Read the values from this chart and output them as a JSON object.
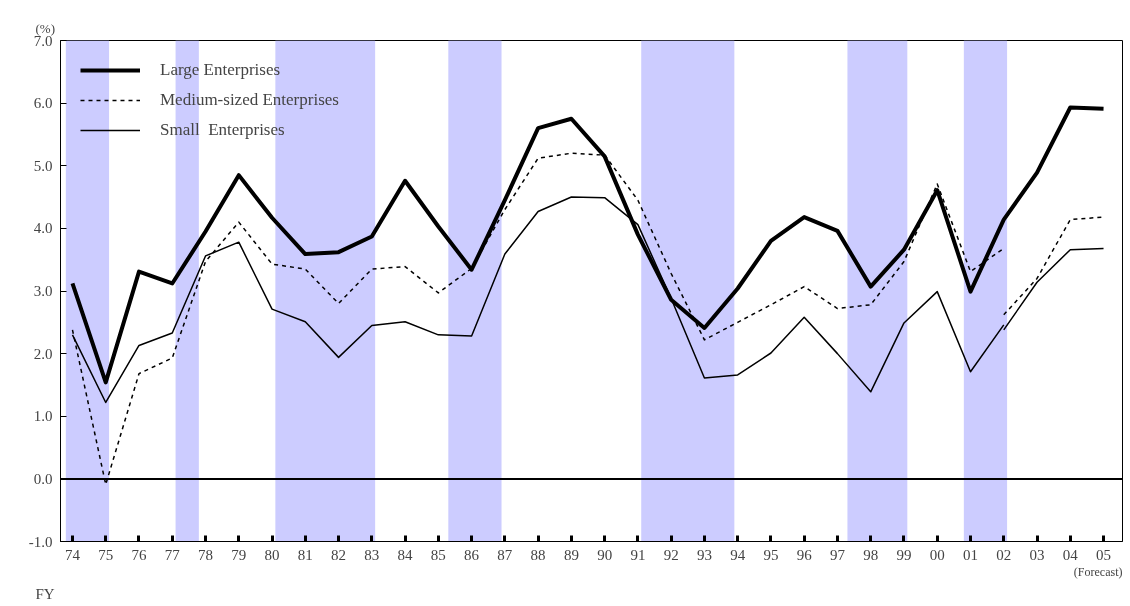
{
  "chart_data": {
    "type": "line",
    "ylabel": "(%)",
    "xlabel": "FY",
    "x": [
      1974,
      1975,
      1976,
      1977,
      1978,
      1979,
      1980,
      1981,
      1982,
      1983,
      1984,
      1985,
      1986,
      1987,
      1988,
      1989,
      1990,
      1991,
      1992,
      1993,
      1994,
      1995,
      1996,
      1997,
      1998,
      1999,
      2000,
      2001,
      2002,
      2003,
      2004,
      2005
    ],
    "series": [
      {
        "name": "Large Enterprises",
        "color": "#000000",
        "line_style": "solid",
        "values": [
          3.12,
          1.54,
          3.31,
          3.12,
          3.95,
          4.85,
          4.17,
          3.59,
          3.62,
          3.87,
          4.76,
          4.03,
          3.34,
          4.45,
          5.6,
          5.75,
          5.15,
          3.9,
          2.86,
          2.41,
          3.04,
          3.8,
          4.18,
          3.96,
          3.07,
          3.66,
          4.61,
          2.99,
          4.14,
          4.89,
          5.93,
          5.91
        ]
      },
      {
        "name": "Medium-sized Enterprises",
        "color": "#000000",
        "line_style": "dashed",
        "values": [
          2.38,
          -0.09,
          1.68,
          1.93,
          3.47,
          4.1,
          3.43,
          3.35,
          2.8,
          3.35,
          3.39,
          2.97,
          3.36,
          4.3,
          5.12,
          5.2,
          5.17,
          4.45,
          3.28,
          2.22,
          2.5,
          2.78,
          3.07,
          2.72,
          2.78,
          3.47,
          4.71,
          3.31,
          3.68,
          null,
          null,
          null
        ]
      },
      {
        "name": "Small  Enterprises",
        "color": "#000000",
        "line_style": "solid",
        "values": [
          2.3,
          1.22,
          2.13,
          2.33,
          3.56,
          3.78,
          2.71,
          2.51,
          1.94,
          2.45,
          2.51,
          2.3,
          2.28,
          3.59,
          4.27,
          4.5,
          4.49,
          4.06,
          2.88,
          1.61,
          1.66,
          2.01,
          2.58,
          2.0,
          1.39,
          2.49,
          2.99,
          1.71,
          2.46,
          null,
          null,
          null
        ]
      },
      {
        "color": "#000000",
        "line_style": "dashed",
        "values": [
          null,
          null,
          null,
          null,
          null,
          null,
          null,
          null,
          null,
          null,
          null,
          null,
          null,
          null,
          null,
          null,
          null,
          null,
          null,
          null,
          null,
          null,
          null,
          null,
          null,
          null,
          null,
          null,
          2.62,
          3.2,
          4.14,
          4.18
        ]
      },
      {
        "color": "#000000",
        "line_style": "solid",
        "values": [
          null,
          null,
          null,
          null,
          null,
          null,
          null,
          null,
          null,
          null,
          null,
          null,
          null,
          null,
          null,
          null,
          null,
          null,
          null,
          null,
          null,
          null,
          null,
          null,
          null,
          null,
          null,
          null,
          2.38,
          3.14,
          3.66,
          3.68
        ]
      }
    ],
    "xlim": [
      1973.64,
      2005.57
    ],
    "xticks": [
      {
        "value": 1974,
        "label": "74"
      },
      {
        "value": 1975,
        "label": "75"
      },
      {
        "value": 1976,
        "label": "76"
      },
      {
        "value": 1977,
        "label": "77"
      },
      {
        "value": 1978,
        "label": "78"
      },
      {
        "value": 1979,
        "label": "79"
      },
      {
        "value": 1980,
        "label": "80"
      },
      {
        "value": 1981,
        "label": "81"
      },
      {
        "value": 1982,
        "label": "82"
      },
      {
        "value": 1983,
        "label": "83"
      },
      {
        "value": 1984,
        "label": "84"
      },
      {
        "value": 1985,
        "label": "85"
      },
      {
        "value": 1986,
        "label": "86"
      },
      {
        "value": 1987,
        "label": "87"
      },
      {
        "value": 1988,
        "label": "88"
      },
      {
        "value": 1989,
        "label": "89"
      },
      {
        "value": 1990,
        "label": "90"
      },
      {
        "value": 1991,
        "label": "91"
      },
      {
        "value": 1992,
        "label": "92"
      },
      {
        "value": 1993,
        "label": "93"
      },
      {
        "value": 1994,
        "label": "94"
      },
      {
        "value": 1995,
        "label": "95"
      },
      {
        "value": 1996,
        "label": "96"
      },
      {
        "value": 1997,
        "label": "97"
      },
      {
        "value": 1998,
        "label": "98"
      },
      {
        "value": 1999,
        "label": "99"
      },
      {
        "value": 2000,
        "label": "00"
      },
      {
        "value": 2001,
        "label": "01"
      },
      {
        "value": 2002,
        "label": "02"
      },
      {
        "value": 2003,
        "label": "03"
      },
      {
        "value": 2004,
        "label": "04"
      },
      {
        "value": 2005,
        "label": "05"
      }
    ],
    "ylim": [
      -1.0,
      7.0
    ],
    "yticks": [
      {
        "value": -1,
        "label": "-1.0"
      },
      {
        "value": 0,
        "label": "0.0"
      },
      {
        "value": 1,
        "label": "1.0"
      },
      {
        "value": 2,
        "label": "2.0"
      },
      {
        "value": 3,
        "label": "3.0"
      },
      {
        "value": 4,
        "label": "4.0"
      },
      {
        "value": 5,
        "label": "5.0"
      },
      {
        "value": 6,
        "label": "6.0"
      },
      {
        "value": 7,
        "label": "7.0"
      }
    ],
    "ref_lines": [
      {
        "axis": "y",
        "value": 0,
        "color": "#000000"
      }
    ],
    "bands": [
      {
        "axis": "x",
        "from": 1973.8,
        "to": 1975.1,
        "color": "#ccccff"
      },
      {
        "axis": "x",
        "from": 1977.1,
        "to": 1977.8,
        "color": "#ccccff"
      },
      {
        "axis": "x",
        "from": 1980.1,
        "to": 1983.1,
        "color": "#ccccff"
      },
      {
        "axis": "x",
        "from": 1985.3,
        "to": 1986.9,
        "color": "#ccccff"
      },
      {
        "axis": "x",
        "from": 1991.1,
        "to": 1993.9,
        "color": "#ccccff"
      },
      {
        "axis": "x",
        "from": 1997.3,
        "to": 1999.1,
        "color": "#ccccff"
      },
      {
        "axis": "x",
        "from": 2000.8,
        "to": 2002.1,
        "color": "#ccccff"
      }
    ],
    "annotations": [
      "(Forecast)"
    ],
    "grid": false,
    "legend": "top left"
  }
}
